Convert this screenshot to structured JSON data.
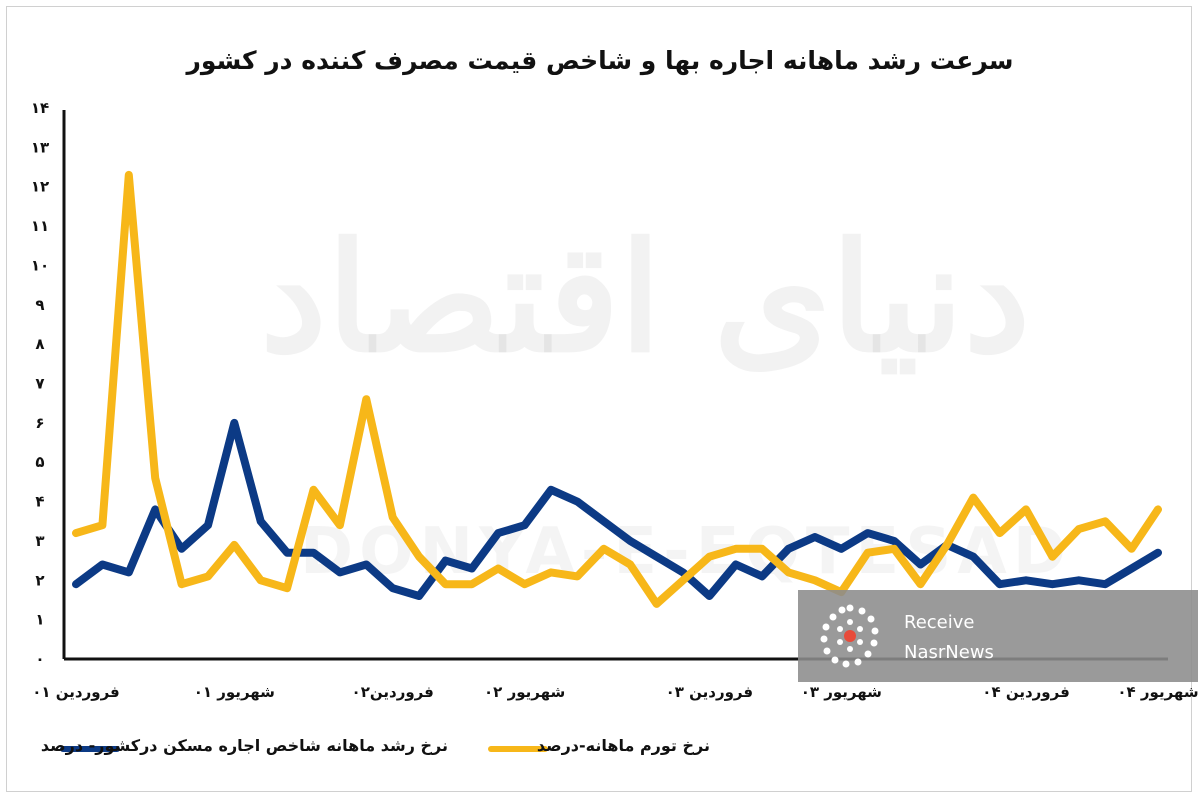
{
  "title": "سرعت رشد ماهانه اجاره بها و شاخص قیمت مصرف کننده در کشور",
  "watermark": {
    "fa": "دنیای اقتصاد",
    "en": "DONYA-E-EQTESAD"
  },
  "badge": {
    "line1": "Receive",
    "line2": "NasrNews"
  },
  "colors": {
    "rent": "#0c3a85",
    "inflation": "#f7b719"
  },
  "legend": {
    "rent": "نرخ رشد ماهانه شاخص اجاره مسکن درکشور- درصد",
    "inflation": "نرخ تورم ماهانه-درصد"
  },
  "chart_data": {
    "type": "line",
    "ylim": [
      0,
      14
    ],
    "yticks": [
      "۰",
      "۱",
      "۲",
      "۳",
      "۴",
      "۵",
      "۶",
      "۷",
      "۸",
      "۹",
      "۱۰",
      "۱۱",
      "۱۲",
      "۱۳",
      "۱۴"
    ],
    "x_tick_labels": [
      {
        "label": "فروردین ۰۱",
        "index": 0
      },
      {
        "label": "شهریور ۰۱",
        "index": 6
      },
      {
        "label": "فروردین۰۲",
        "index": 12
      },
      {
        "label": "شهریور ۰۲",
        "index": 17
      },
      {
        "label": "فروردین ۰۳",
        "index": 24
      },
      {
        "label": "شهریور ۰۳",
        "index": 29
      },
      {
        "label": "فروردین ۰۴",
        "index": 36
      },
      {
        "label": "شهریور ۰۴",
        "index": 41
      }
    ],
    "series": [
      {
        "name": "نرخ رشد ماهانه شاخص اجاره مسکن درکشور- درصد",
        "values": [
          1.9,
          2.4,
          2.2,
          3.8,
          2.8,
          3.4,
          6.0,
          3.5,
          2.7,
          2.7,
          2.2,
          2.4,
          1.8,
          1.6,
          2.5,
          2.3,
          3.2,
          3.4,
          4.3,
          4.0,
          3.5,
          3.0,
          2.6,
          2.2,
          1.6,
          2.4,
          2.1,
          2.8,
          3.1,
          2.8,
          3.2,
          3.0,
          2.4,
          2.9,
          2.6,
          1.9,
          2.0,
          1.9,
          2.0,
          1.9,
          2.3,
          2.7
        ]
      },
      {
        "name": "نرخ تورم ماهانه-درصد",
        "values": [
          3.2,
          3.4,
          12.3,
          4.6,
          1.9,
          2.1,
          2.9,
          2.0,
          1.8,
          4.3,
          3.4,
          6.6,
          3.6,
          2.6,
          1.9,
          1.9,
          2.3,
          1.9,
          2.2,
          2.1,
          2.8,
          2.4,
          1.4,
          2.0,
          2.6,
          2.8,
          2.8,
          2.2,
          2.0,
          1.7,
          2.7,
          2.8,
          1.9,
          2.9,
          4.1,
          3.2,
          3.8,
          2.6,
          3.3,
          3.5,
          2.8,
          3.8
        ]
      }
    ]
  }
}
